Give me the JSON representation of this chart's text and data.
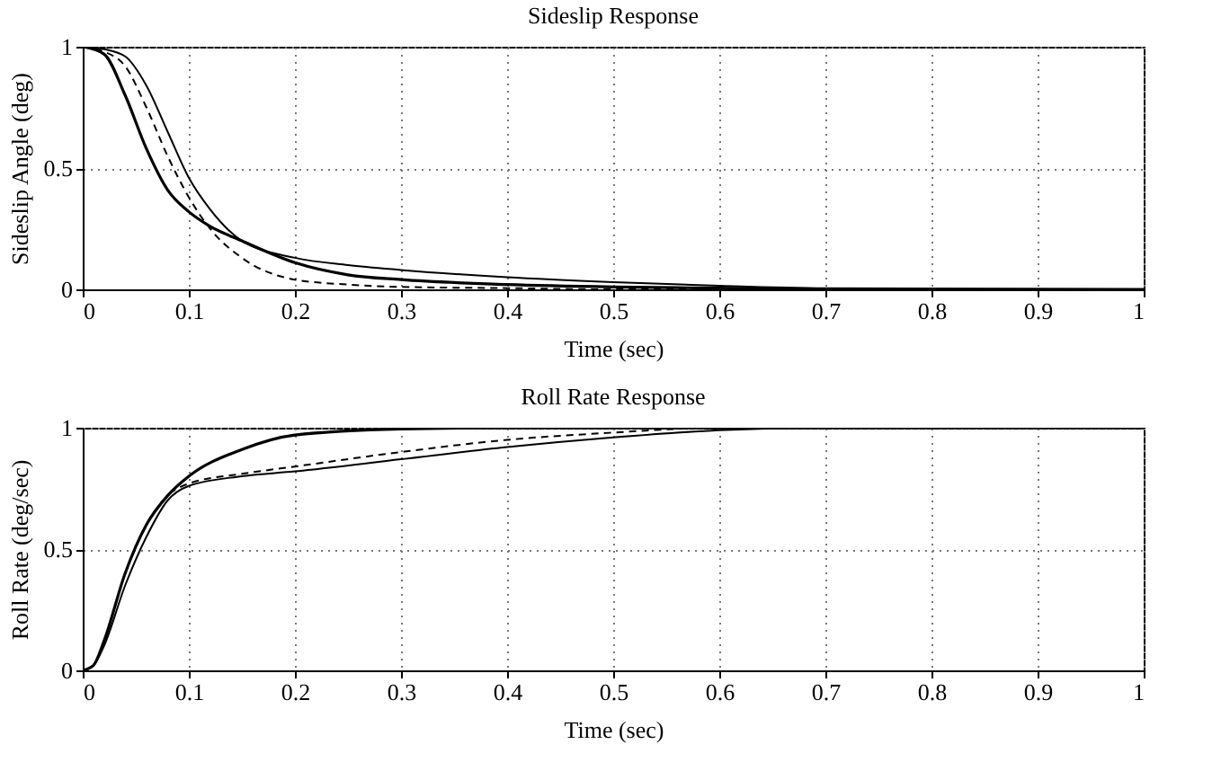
{
  "chart_data": [
    {
      "type": "line",
      "title": "Sideslip Response",
      "xlabel": "Time (sec)",
      "ylabel": "Sideslip Angle (deg)",
      "xlim": [
        0,
        1
      ],
      "ylim": [
        0,
        1
      ],
      "xticks": [
        0,
        0.1,
        0.2,
        0.3,
        0.4,
        0.5,
        0.6,
        0.7,
        0.8,
        0.9,
        1
      ],
      "yticks": [
        0,
        0.5,
        1
      ],
      "grid": true,
      "x": [
        0,
        0.02,
        0.04,
        0.06,
        0.08,
        0.1,
        0.12,
        0.15,
        0.2,
        0.25,
        0.3,
        0.4,
        0.5,
        0.6,
        0.7,
        1
      ],
      "series": [
        {
          "color": "#000000",
          "line_style": "solid",
          "values": [
            1,
            0.97,
            0.8,
            0.58,
            0.41,
            0.32,
            0.26,
            0.2,
            0.11,
            0.06,
            0.04,
            0.02,
            0.01,
            0.005,
            0,
            0
          ]
        },
        {
          "color": "#000000",
          "line_style": "dashed",
          "values": [
            1,
            0.98,
            0.92,
            0.75,
            0.55,
            0.38,
            0.25,
            0.13,
            0.04,
            0.02,
            0.01,
            0.005,
            0,
            0,
            0,
            0
          ]
        },
        {
          "color": "#000000",
          "line_style": "solid",
          "values": [
            1,
            0.99,
            0.96,
            0.84,
            0.65,
            0.46,
            0.33,
            0.2,
            0.13,
            0.1,
            0.08,
            0.05,
            0.03,
            0.015,
            0.005,
            0
          ]
        }
      ]
    },
    {
      "type": "line",
      "title": "Roll Rate Response",
      "xlabel": "Time (sec)",
      "ylabel": "Roll Rate (deg/sec)",
      "xlim": [
        0,
        1
      ],
      "ylim": [
        0,
        1
      ],
      "xticks": [
        0,
        0.1,
        0.2,
        0.3,
        0.4,
        0.5,
        0.6,
        0.7,
        0.8,
        0.9,
        1
      ],
      "yticks": [
        0,
        0.5,
        1
      ],
      "grid": true,
      "x": [
        0,
        0.01,
        0.02,
        0.04,
        0.06,
        0.08,
        0.1,
        0.15,
        0.2,
        0.3,
        0.4,
        0.5,
        0.6,
        0.7,
        1
      ],
      "series": [
        {
          "color": "#000000",
          "line_style": "solid",
          "values": [
            0,
            0.02,
            0.12,
            0.4,
            0.6,
            0.72,
            0.8,
            0.91,
            0.97,
            0.995,
            1,
            1,
            1,
            1,
            1
          ]
        },
        {
          "color": "#000000",
          "line_style": "dashed",
          "values": [
            0,
            0.02,
            0.12,
            0.4,
            0.6,
            0.72,
            0.77,
            0.81,
            0.84,
            0.9,
            0.95,
            0.98,
            1,
            1,
            1
          ]
        },
        {
          "color": "#000000",
          "line_style": "solid",
          "values": [
            0,
            0.02,
            0.1,
            0.35,
            0.55,
            0.7,
            0.76,
            0.8,
            0.82,
            0.87,
            0.92,
            0.96,
            0.99,
            1,
            1
          ]
        }
      ]
    }
  ]
}
